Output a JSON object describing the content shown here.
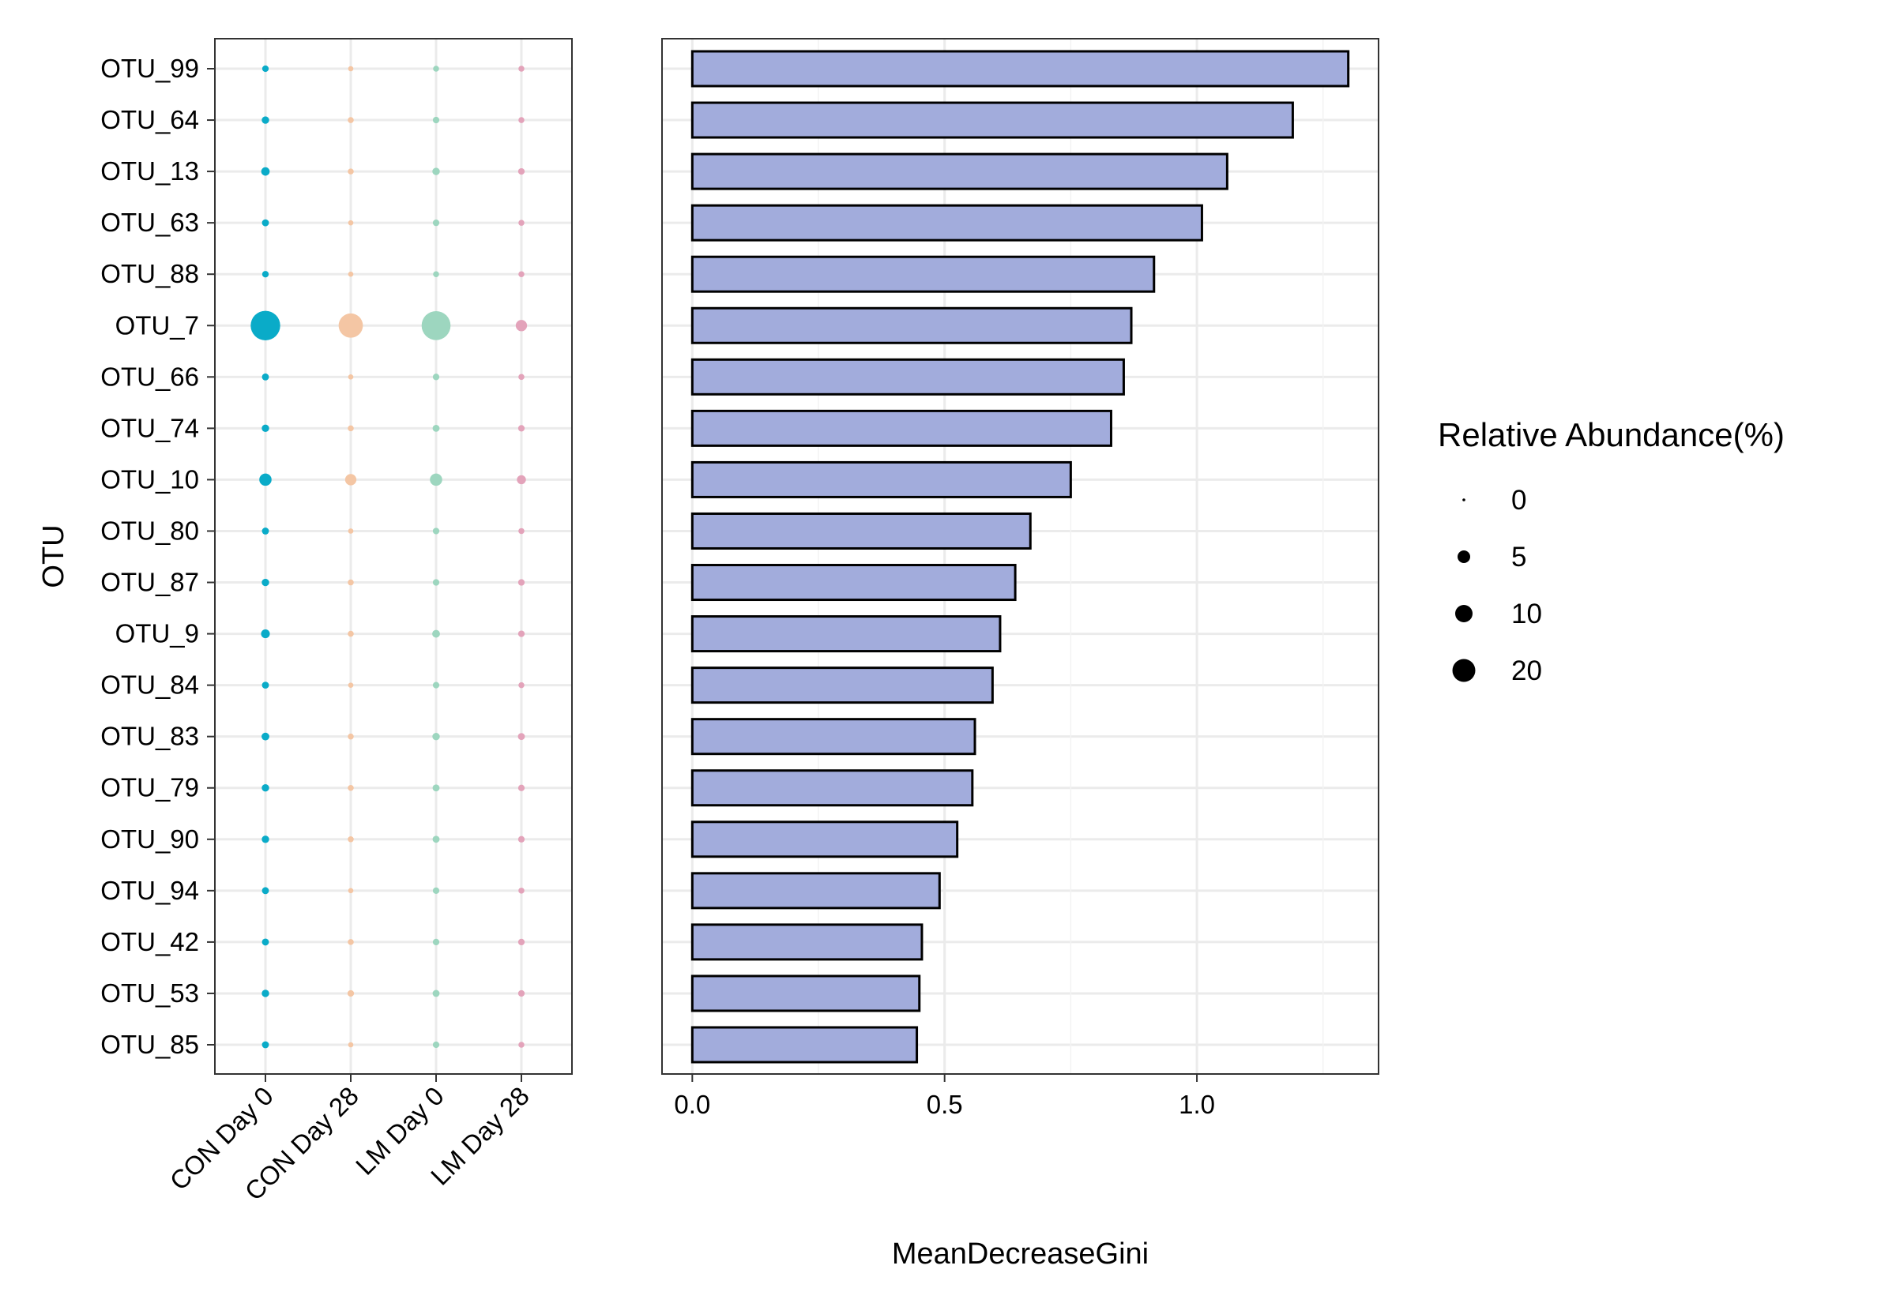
{
  "chart_data": [
    {
      "type": "scatter",
      "ylabel": "OTU",
      "xlabel": "",
      "categories_x": [
        "CON Day 0",
        "CON Day 28",
        "LM Day 0",
        "LM Day 28"
      ],
      "categories_y": [
        "OTU_99",
        "OTU_64",
        "OTU_13",
        "OTU_63",
        "OTU_88",
        "OTU_7",
        "OTU_66",
        "OTU_74",
        "OTU_10",
        "OTU_80",
        "OTU_87",
        "OTU_9",
        "OTU_84",
        "OTU_83",
        "OTU_79",
        "OTU_90",
        "OTU_94",
        "OTU_42",
        "OTU_53",
        "OTU_85"
      ],
      "series": [
        {
          "group": "CON Day 0",
          "color": "#0aabc8",
          "values": [
            0.3,
            0.5,
            0.8,
            0.4,
            0.3,
            22,
            0.4,
            0.5,
            2.5,
            0.4,
            0.5,
            0.9,
            0.4,
            0.6,
            0.5,
            0.5,
            0.4,
            0.4,
            0.5,
            0.4
          ]
        },
        {
          "group": "CON Day 28",
          "color": "#f4c6a4",
          "values": [
            0.1,
            0.2,
            0.2,
            0.1,
            0.1,
            14,
            0.1,
            0.2,
            2.0,
            0.1,
            0.2,
            0.2,
            0.1,
            0.2,
            0.2,
            0.2,
            0.1,
            0.2,
            0.3,
            0.1
          ]
        },
        {
          "group": "LM Day 0",
          "color": "#9dd6bf",
          "values": [
            0.2,
            0.3,
            0.5,
            0.3,
            0.2,
            21,
            0.3,
            0.4,
            2.5,
            0.3,
            0.3,
            0.6,
            0.3,
            0.5,
            0.4,
            0.4,
            0.3,
            0.3,
            0.4,
            0.3
          ]
        },
        {
          "group": "LM Day 28",
          "color": "#e3a3ba",
          "values": [
            0.2,
            0.2,
            0.3,
            0.2,
            0.2,
            2.0,
            0.2,
            0.3,
            1.0,
            0.2,
            0.3,
            0.3,
            0.2,
            0.4,
            0.3,
            0.3,
            0.2,
            0.3,
            0.3,
            0.2
          ]
        }
      ],
      "size_legend": {
        "title": "Relative Abundance(%)",
        "breaks": [
          0,
          5,
          10,
          20
        ],
        "labels": [
          "0",
          "5",
          "10",
          "20"
        ]
      }
    },
    {
      "type": "bar",
      "orientation": "horizontal",
      "xlabel": "MeanDecreaseGini",
      "ylabel": "",
      "categories": [
        "OTU_99",
        "OTU_64",
        "OTU_13",
        "OTU_63",
        "OTU_88",
        "OTU_7",
        "OTU_66",
        "OTU_74",
        "OTU_10",
        "OTU_80",
        "OTU_87",
        "OTU_9",
        "OTU_84",
        "OTU_83",
        "OTU_79",
        "OTU_90",
        "OTU_94",
        "OTU_42",
        "OTU_53",
        "OTU_85"
      ],
      "values": [
        1.3,
        1.19,
        1.06,
        1.01,
        0.915,
        0.87,
        0.855,
        0.83,
        0.75,
        0.67,
        0.64,
        0.61,
        0.595,
        0.56,
        0.555,
        0.525,
        0.49,
        0.455,
        0.45,
        0.445
      ],
      "xlim": [
        -0.06,
        1.36
      ],
      "xticks": [
        0.0,
        0.5,
        1.0
      ],
      "xtick_labels": [
        "0.0",
        "0.5",
        "1.0"
      ],
      "bar_fill": "#a2acdc",
      "bar_stroke": "#000000",
      "grid": true
    }
  ]
}
